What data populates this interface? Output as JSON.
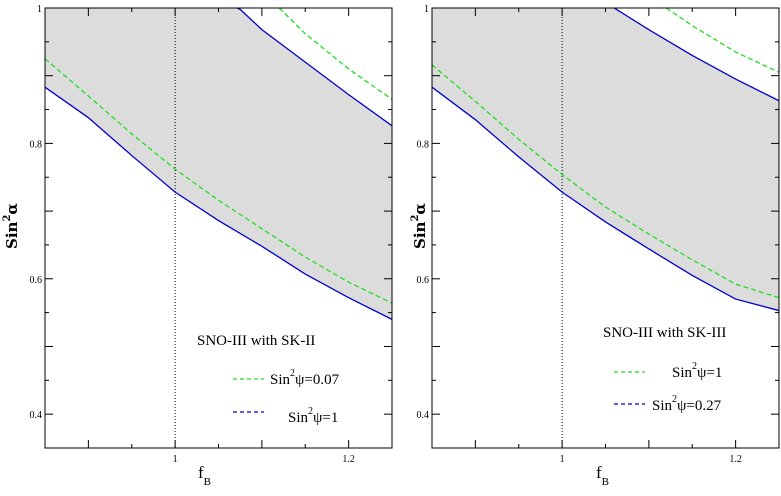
{
  "chart_data": [
    {
      "type": "area",
      "panel": "left",
      "xlabel": "f_B",
      "xlabel_main": "f",
      "xlabel_sub": "B",
      "ylabel": "Sin²α",
      "ylabel_main": "Sin",
      "ylabel_sup": "2",
      "ylabel_tail": "α",
      "xlim": [
        0.85,
        1.25
      ],
      "ylim": [
        0.35,
        1.0
      ],
      "xticks": [
        1,
        1.2
      ],
      "xtick_labels": [
        "1",
        "1.2"
      ],
      "yticks": [
        0.4,
        0.6,
        0.8,
        1.0
      ],
      "ytick_labels": [
        "0.4",
        "0.6",
        "0.8",
        "1"
      ],
      "vline_x": 1.0,
      "region": {
        "fill_color": "#dcdcdc",
        "bound_color": "#0000cc",
        "lower_bound": {
          "x": [
            0.85,
            0.9,
            0.95,
            1.0,
            1.05,
            1.1,
            1.15,
            1.2,
            1.25
          ],
          "y": [
            0.883,
            0.838,
            0.782,
            0.728,
            0.686,
            0.648,
            0.607,
            0.572,
            0.54
          ]
        },
        "upper_bound": {
          "x": [
            1.05,
            1.075,
            1.1,
            1.15,
            1.2,
            1.25
          ],
          "y": [
            1.012,
            0.998,
            0.968,
            0.92,
            0.872,
            0.826
          ]
        }
      },
      "dashed_curves": [
        {
          "color": "#22dd22",
          "x": [
            0.85,
            0.9,
            0.95,
            1.0,
            1.05,
            1.1,
            1.15,
            1.2,
            1.25
          ],
          "y": [
            0.925,
            0.87,
            0.814,
            0.762,
            0.716,
            0.674,
            0.632,
            0.595,
            0.564
          ]
        },
        {
          "color": "#22dd22",
          "x": [
            1.12,
            1.15,
            1.2,
            1.25
          ],
          "y": [
            1.0,
            0.962,
            0.91,
            0.865
          ]
        }
      ],
      "legend": {
        "title": "SNO-III with SK-II",
        "entries": [
          {
            "main": "Sin",
            "sup": "2",
            "tail": "ψ=0.07",
            "color": "#22dd22",
            "style": "dashed"
          },
          {
            "main": "Sin",
            "sup": "2",
            "tail": "ψ=1",
            "color": "#0000cc",
            "style": "dashed"
          }
        ]
      }
    },
    {
      "type": "area",
      "panel": "right",
      "xlabel": "f_B",
      "xlabel_main": "f",
      "xlabel_sub": "B",
      "ylabel": "Sin²α",
      "ylabel_main": "Sin",
      "ylabel_sup": "2",
      "ylabel_tail": "α",
      "xlim": [
        0.85,
        1.25
      ],
      "ylim": [
        0.35,
        1.0
      ],
      "xticks": [
        1,
        1.2
      ],
      "xtick_labels": [
        "1",
        "1.2"
      ],
      "yticks": [
        0.4,
        0.6,
        0.8,
        1.0
      ],
      "ytick_labels": [
        "0.4",
        "0.6",
        "0.8",
        "1"
      ],
      "vline_x": 1.0,
      "region": {
        "fill_color": "#dcdcdc",
        "bound_color": "#0000cc",
        "lower_bound": {
          "x": [
            0.85,
            0.9,
            0.95,
            1.0,
            1.05,
            1.1,
            1.15,
            1.2,
            1.25
          ],
          "y": [
            0.883,
            0.835,
            0.78,
            0.728,
            0.684,
            0.644,
            0.605,
            0.57,
            0.553
          ]
        },
        "upper_bound": {
          "x": [
            1.06,
            1.1,
            1.15,
            1.2,
            1.25
          ],
          "y": [
            1.0,
            0.968,
            0.93,
            0.895,
            0.863
          ]
        }
      },
      "dashed_curves": [
        {
          "color": "#22dd22",
          "x": [
            0.85,
            0.9,
            0.95,
            1.0,
            1.05,
            1.1,
            1.15,
            1.2,
            1.25
          ],
          "y": [
            0.916,
            0.862,
            0.806,
            0.754,
            0.706,
            0.666,
            0.628,
            0.592,
            0.572
          ]
        },
        {
          "color": "#22dd22",
          "x": [
            1.12,
            1.15,
            1.2,
            1.25
          ],
          "y": [
            1.0,
            0.974,
            0.935,
            0.905
          ]
        }
      ],
      "legend": {
        "title": "SNO-III with SK-III",
        "entries": [
          {
            "main": "Sin",
            "sup": "2",
            "tail": "ψ=1",
            "color": "#22dd22",
            "style": "dashed"
          },
          {
            "main": "Sin",
            "sup": "2",
            "tail": "ψ=0.27",
            "color": "#0000cc",
            "style": "dashed"
          }
        ]
      }
    }
  ]
}
